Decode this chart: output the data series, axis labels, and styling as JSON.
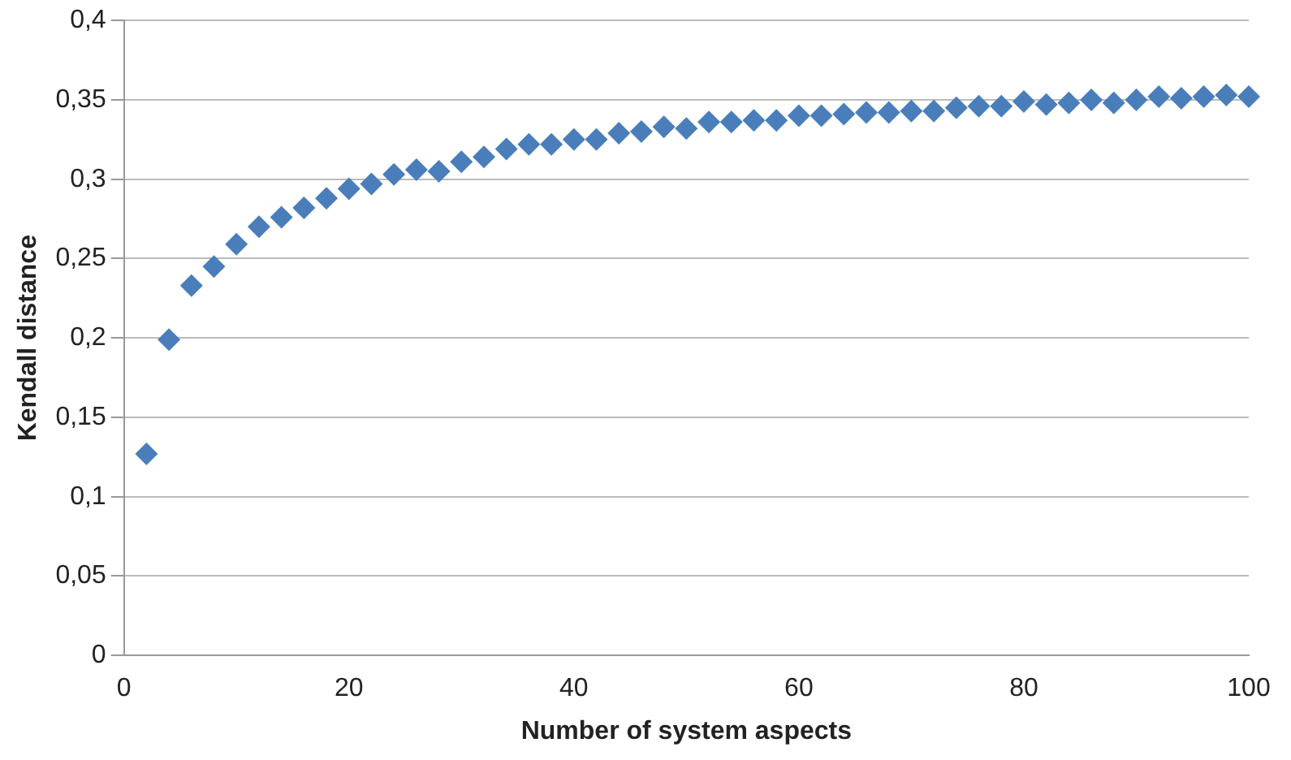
{
  "chart_data": {
    "type": "scatter",
    "xlabel": "Number of system aspects",
    "ylabel": "Kendall distance",
    "x": [
      2,
      4,
      6,
      8,
      10,
      12,
      14,
      16,
      18,
      20,
      22,
      24,
      26,
      28,
      30,
      32,
      34,
      36,
      38,
      40,
      42,
      44,
      46,
      48,
      50,
      52,
      54,
      56,
      58,
      60,
      62,
      64,
      66,
      68,
      70,
      72,
      74,
      76,
      78,
      80,
      82,
      84,
      86,
      88,
      90,
      92,
      94,
      96,
      98,
      100
    ],
    "series": [
      {
        "color": "#4a7ebb",
        "values": [
          0.127,
          0.199,
          0.233,
          0.245,
          0.259,
          0.27,
          0.276,
          0.282,
          0.288,
          0.294,
          0.297,
          0.303,
          0.306,
          0.305,
          0.311,
          0.314,
          0.319,
          0.322,
          0.322,
          0.325,
          0.325,
          0.329,
          0.33,
          0.333,
          0.332,
          0.336,
          0.336,
          0.337,
          0.337,
          0.34,
          0.34,
          0.341,
          0.342,
          0.342,
          0.343,
          0.343,
          0.345,
          0.346,
          0.346,
          0.349,
          0.347,
          0.348,
          0.35,
          0.348,
          0.35,
          0.352,
          0.351,
          0.352,
          0.353,
          0.352
        ]
      }
    ],
    "xlim": [
      0,
      100
    ],
    "xticks": [
      0,
      20,
      40,
      60,
      80,
      100
    ],
    "ylim": [
      0,
      0.4
    ],
    "yticks": [
      {
        "value": 0,
        "label": "0"
      },
      {
        "value": 0.05,
        "label": "0,05"
      },
      {
        "value": 0.1,
        "label": "0,1"
      },
      {
        "value": 0.15,
        "label": "0,15"
      },
      {
        "value": 0.2,
        "label": "0,2"
      },
      {
        "value": 0.25,
        "label": "0,25"
      },
      {
        "value": 0.3,
        "label": "0,3"
      },
      {
        "value": 0.35,
        "label": "0,35"
      },
      {
        "value": 0.4,
        "label": "0,4"
      }
    ],
    "grid": "y",
    "legend": false,
    "marker": "diamond"
  }
}
